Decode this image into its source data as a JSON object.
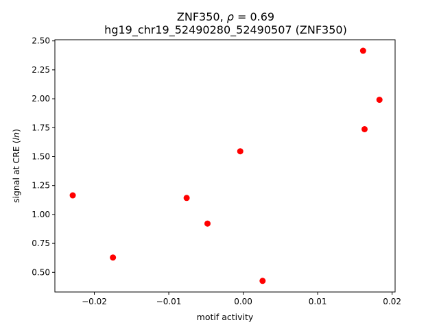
{
  "chart_data": {
    "type": "scatter",
    "title_main": "ZNF350, ",
    "title_rho_symbol": "ρ",
    "title_rho_value": " = 0.69",
    "subtitle": "hg19_chr19_52490280_52490507 (ZNF350)",
    "xlabel": "motif activity",
    "ylabel_prefix": "signal at CRE (",
    "ylabel_italic": "ln",
    "ylabel_suffix": ")",
    "xlim": [
      -0.0253,
      0.0204
    ],
    "ylim": [
      0.33,
      2.51
    ],
    "xticks": [
      -0.02,
      -0.01,
      0.0,
      0.01,
      0.02
    ],
    "xtick_labels": [
      "−0.02",
      "−0.01",
      "0.00",
      "0.01",
      "0.02"
    ],
    "yticks": [
      0.5,
      0.75,
      1.0,
      1.25,
      1.5,
      1.75,
      2.0,
      2.25,
      2.5
    ],
    "ytick_labels": [
      "0.50",
      "0.75",
      "1.00",
      "1.25",
      "1.50",
      "1.75",
      "2.00",
      "2.25",
      "2.50"
    ],
    "marker_color": "#ff0000",
    "grid": false,
    "points": [
      {
        "x": -0.0229,
        "y": 1.165
      },
      {
        "x": -0.0175,
        "y": 0.628
      },
      {
        "x": -0.0076,
        "y": 1.143
      },
      {
        "x": -0.0048,
        "y": 0.921
      },
      {
        "x": -0.0004,
        "y": 1.546
      },
      {
        "x": 0.0026,
        "y": 0.426
      },
      {
        "x": 0.0161,
        "y": 2.415
      },
      {
        "x": 0.0163,
        "y": 1.737
      },
      {
        "x": 0.0183,
        "y": 1.991
      }
    ]
  }
}
